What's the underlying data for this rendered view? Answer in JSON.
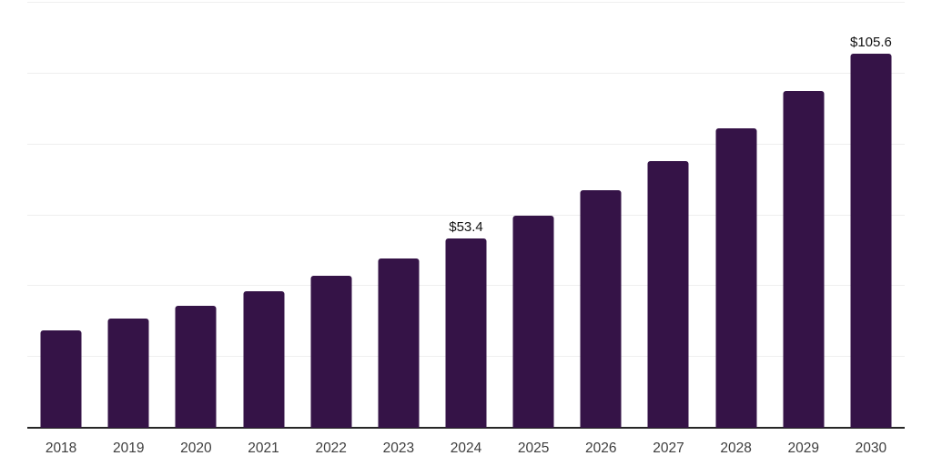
{
  "chart_data": {
    "type": "bar",
    "title": "",
    "xlabel": "",
    "ylabel": "",
    "categories": [
      "2018",
      "2019",
      "2020",
      "2021",
      "2022",
      "2023",
      "2024",
      "2025",
      "2026",
      "2027",
      "2028",
      "2029",
      "2030"
    ],
    "values": [
      27.5,
      30.8,
      34.4,
      38.5,
      42.9,
      47.8,
      53.4,
      59.9,
      67.0,
      75.2,
      84.5,
      95.0,
      105.6
    ],
    "point_labels": [
      "",
      "",
      "",
      "",
      "",
      "",
      "$53.4",
      "",
      "",
      "",
      "",
      "",
      "$105.6"
    ],
    "ylim": [
      0,
      120
    ],
    "grid_step": 20,
    "grid": true,
    "legend": false,
    "y_tick_labels_visible": false,
    "colors": {
      "bar": "#351347",
      "axis_line": "#262626",
      "gridline": "#efefef",
      "tick_label": "#3d3d3d",
      "value_label": "#111111",
      "background": "#ffffff"
    }
  }
}
